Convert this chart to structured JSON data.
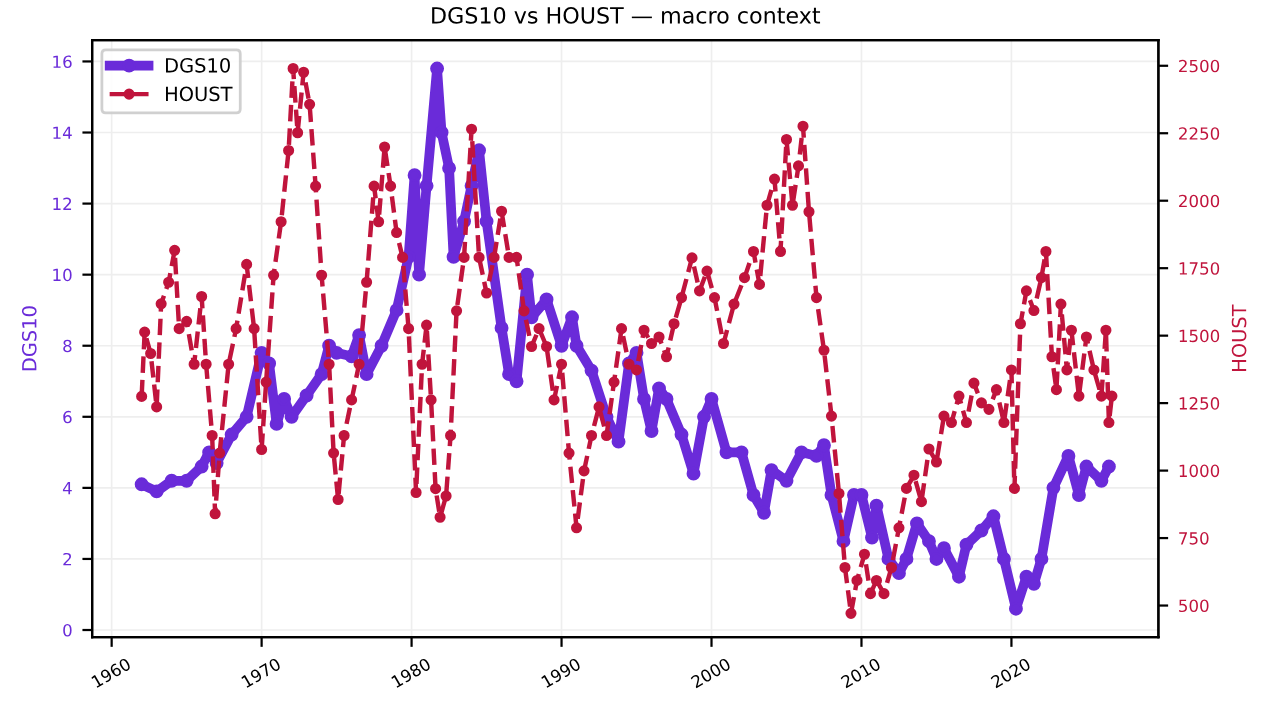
{
  "chart_data": {
    "type": "line",
    "title": "DGS10 vs HOUST — macro context",
    "ylabel": "DGS10",
    "y2label": "HOUST",
    "xlim": [
      1958.7,
      2029.8
    ],
    "xticks": [
      1960,
      1970,
      1980,
      1990,
      2000,
      2010,
      2020
    ],
    "ylim": [
      -0.2,
      16.6
    ],
    "yticks": [
      0,
      2,
      4,
      6,
      8,
      10,
      12,
      14,
      16
    ],
    "y2lim": [
      383,
      2595
    ],
    "y2ticks": [
      500,
      750,
      1000,
      1250,
      1500,
      1750,
      2000,
      2250,
      2500
    ],
    "grid": true,
    "legend": "top left",
    "marker": "circle",
    "series": [
      {
        "name": "DGS10",
        "color": "#6a2bd9",
        "line_style": "solid",
        "x": [
          1962,
          1963,
          1964,
          1965,
          1966,
          1966.5,
          1967,
          1968,
          1969,
          1970,
          1970.5,
          1971,
          1971.5,
          1972,
          1973,
          1974,
          1974.5,
          1975,
          1976,
          1976.5,
          1977,
          1978,
          1979,
          1979.8,
          1980.2,
          1980.5,
          1981,
          1981.7,
          1982,
          1982.5,
          1982.8,
          1983.5,
          1984,
          1984.5,
          1985,
          1986,
          1986.5,
          1987,
          1987.7,
          1988,
          1989,
          1990,
          1990.7,
          1991,
          1992,
          1993,
          1993.8,
          1994.5,
          1995,
          1995.5,
          1996,
          1996.5,
          1997,
          1998,
          1998.8,
          1999.5,
          2000,
          2001,
          2002,
          2002.8,
          2003.5,
          2004,
          2005,
          2006,
          2007,
          2007.5,
          2008,
          2008.8,
          2009.5,
          2010,
          2010.7,
          2011,
          2011.8,
          2012.5,
          2013,
          2013.7,
          2014.5,
          2015,
          2015.5,
          2016.5,
          2017,
          2018,
          2018.8,
          2019.5,
          2020.3,
          2021,
          2021.5,
          2022,
          2022.8,
          2023.8,
          2024.5,
          2025,
          2026,
          2026.5
        ],
        "values": [
          4.1,
          3.9,
          4.2,
          4.2,
          4.6,
          5.0,
          4.7,
          5.5,
          6.0,
          7.8,
          7.5,
          5.8,
          6.5,
          6.0,
          6.6,
          7.2,
          8.0,
          7.8,
          7.7,
          8.3,
          7.2,
          8.0,
          9.0,
          10.5,
          12.8,
          10.0,
          12.5,
          15.8,
          14.0,
          13.0,
          10.5,
          11.5,
          12.5,
          13.5,
          11.5,
          8.5,
          7.2,
          7.0,
          10.0,
          8.8,
          9.3,
          8.0,
          8.8,
          8.0,
          7.3,
          6.0,
          5.3,
          7.5,
          7.8,
          6.5,
          5.6,
          6.8,
          6.5,
          5.5,
          4.4,
          6.0,
          6.5,
          5.0,
          5.0,
          3.8,
          3.3,
          4.5,
          4.2,
          5.0,
          4.9,
          5.2,
          3.8,
          2.5,
          3.8,
          3.8,
          2.6,
          3.5,
          2.0,
          1.6,
          2.0,
          3.0,
          2.5,
          2.0,
          2.3,
          1.5,
          2.4,
          2.8,
          3.2,
          2.0,
          0.6,
          1.5,
          1.3,
          2.0,
          4.0,
          4.9,
          3.8,
          4.6,
          4.2,
          4.6
        ]
      },
      {
        "name": "HOUST",
        "color": "#c0143c",
        "line_style": "dashed",
        "axis": "y2",
        "x": [
          1962.0,
          1962.2,
          1962.6,
          1963.0,
          1963.3,
          1963.8,
          1964.2,
          1964.5,
          1965.0,
          1965.5,
          1966.0,
          1966.3,
          1966.7,
          1966.9,
          1967.2,
          1967.8,
          1968.3,
          1969.0,
          1969.5,
          1970.0,
          1970.3,
          1970.8,
          1971.3,
          1971.8,
          1972.1,
          1972.4,
          1972.8,
          1973.2,
          1973.6,
          1974.0,
          1974.5,
          1974.8,
          1975.1,
          1975.5,
          1976.0,
          1976.5,
          1977.0,
          1977.5,
          1977.8,
          1978.2,
          1978.6,
          1979.0,
          1979.4,
          1979.8,
          1980.3,
          1980.7,
          1981.0,
          1981.3,
          1981.6,
          1981.9,
          1982.3,
          1982.6,
          1983.0,
          1983.5,
          1984.0,
          1984.5,
          1985.0,
          1985.5,
          1986.0,
          1986.5,
          1987.0,
          1987.5,
          1988.0,
          1988.5,
          1989.0,
          1989.5,
          1990.0,
          1990.5,
          1991.0,
          1991.5,
          1992.0,
          1992.5,
          1993.0,
          1993.5,
          1994.0,
          1994.5,
          1995.0,
          1995.5,
          1996.0,
          1996.5,
          1997.0,
          1997.5,
          1998.0,
          1998.7,
          1999.2,
          1999.7,
          2000.2,
          2000.8,
          2001.5,
          2002.2,
          2002.8,
          2003.2,
          2003.7,
          2004.2,
          2004.6,
          2005.0,
          2005.4,
          2005.8,
          2006.1,
          2006.5,
          2007.0,
          2007.5,
          2008.0,
          2008.5,
          2008.9,
          2009.3,
          2009.7,
          2010.2,
          2010.6,
          2011.0,
          2011.5,
          2012.0,
          2012.5,
          2013.0,
          2013.5,
          2014.0,
          2014.5,
          2015.0,
          2015.5,
          2016.0,
          2016.5,
          2017.0,
          2017.5,
          2018.0,
          2018.5,
          2019.0,
          2019.5,
          2020.0,
          2020.2,
          2020.6,
          2021.0,
          2021.5,
          2022.0,
          2022.3,
          2022.7,
          2023.0,
          2023.3,
          2023.7,
          2024.0,
          2024.5,
          2025.0,
          2025.5,
          2026.0,
          2026.3,
          2026.5,
          2026.7
        ],
        "values": [
          1275,
          1513,
          1434,
          1236,
          1618,
          1698,
          1816,
          1526,
          1553,
          1394,
          1645,
          1394,
          1130,
          840,
          1065,
          1394,
          1526,
          1764,
          1526,
          1078,
          1328,
          1724,
          1922,
          2186,
          2490,
          2252,
          2476,
          2357,
          2054,
          1724,
          1394,
          1065,
          893,
          1130,
          1262,
          1394,
          1698,
          2054,
          1922,
          2199,
          2054,
          1882,
          1790,
          1526,
          919,
          1394,
          1539,
          1262,
          933,
          827,
          906,
          1130,
          1592,
          1790,
          2265,
          1790,
          1658,
          1790,
          1961,
          1790,
          1790,
          1592,
          1460,
          1526,
          1460,
          1262,
          1394,
          1065,
          788,
          999,
          1130,
          1236,
          1130,
          1328,
          1526,
          1394,
          1373,
          1520,
          1471,
          1495,
          1422,
          1544,
          1641,
          1788,
          1666,
          1739,
          1641,
          1471,
          1617,
          1715,
          1812,
          1690,
          1983,
          2080,
          1812,
          2227,
          1983,
          2129,
          2276,
          1959,
          1641,
          1446,
          1202,
          915,
          641,
          471,
          593,
          690,
          544,
          593,
          544,
          641,
          788,
          934,
          983,
          885,
          1080,
          1032,
          1202,
          1178,
          1276,
          1178,
          1324,
          1251,
          1227,
          1300,
          1178,
          1373,
          934,
          1544,
          1666,
          1593,
          1715,
          1812,
          1422,
          1300,
          1617,
          1373,
          1520,
          1276,
          1495,
          1373,
          1276,
          1520,
          1178,
          1276
        ]
      }
    ]
  }
}
